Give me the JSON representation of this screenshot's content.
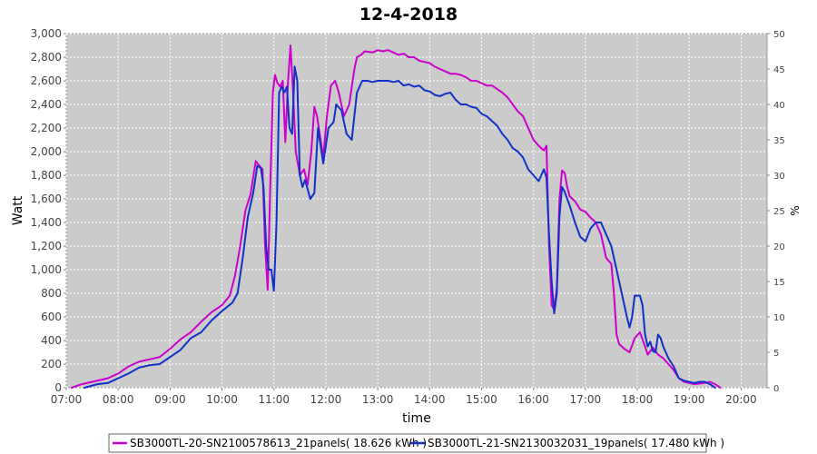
{
  "chart_data": {
    "type": "line",
    "title": "12-4-2018",
    "xlabel": "time",
    "ylabel": "Watt",
    "y2label": "%",
    "xlim": [
      7.0,
      20.5
    ],
    "ylim": [
      0,
      3000
    ],
    "y2lim": [
      0,
      50
    ],
    "x_ticks": [
      {
        "v": 7,
        "label": "07:00"
      },
      {
        "v": 8,
        "label": "08:00"
      },
      {
        "v": 9,
        "label": "09:00"
      },
      {
        "v": 10,
        "label": "10:00"
      },
      {
        "v": 11,
        "label": "11:00"
      },
      {
        "v": 12,
        "label": "12:00"
      },
      {
        "v": 13,
        "label": "13:00"
      },
      {
        "v": 14,
        "label": "14:00"
      },
      {
        "v": 15,
        "label": "15:00"
      },
      {
        "v": 16,
        "label": "16:00"
      },
      {
        "v": 17,
        "label": "17:00"
      },
      {
        "v": 18,
        "label": "18:00"
      },
      {
        "v": 19,
        "label": "19:00"
      },
      {
        "v": 20,
        "label": "20:00"
      }
    ],
    "y_ticks": [
      {
        "v": 0,
        "label": "0"
      },
      {
        "v": 200,
        "label": "200"
      },
      {
        "v": 400,
        "label": "400"
      },
      {
        "v": 600,
        "label": "600"
      },
      {
        "v": 800,
        "label": "800"
      },
      {
        "v": 1000,
        "label": "1,000"
      },
      {
        "v": 1200,
        "label": "1,200"
      },
      {
        "v": 1400,
        "label": "1,400"
      },
      {
        "v": 1600,
        "label": "1,600"
      },
      {
        "v": 1800,
        "label": "1,800"
      },
      {
        "v": 2000,
        "label": "2,000"
      },
      {
        "v": 2200,
        "label": "2,200"
      },
      {
        "v": 2400,
        "label": "2,400"
      },
      {
        "v": 2600,
        "label": "2,600"
      },
      {
        "v": 2800,
        "label": "2,800"
      },
      {
        "v": 3000,
        "label": "3,000"
      }
    ],
    "y2_ticks": [
      {
        "v": 0,
        "label": "0"
      },
      {
        "v": 5,
        "label": "5"
      },
      {
        "v": 10,
        "label": "10"
      },
      {
        "v": 15,
        "label": "15"
      },
      {
        "v": 20,
        "label": "20"
      },
      {
        "v": 25,
        "label": "25"
      },
      {
        "v": 30,
        "label": "30"
      },
      {
        "v": 35,
        "label": "35"
      },
      {
        "v": 40,
        "label": "40"
      },
      {
        "v": 45,
        "label": "45"
      },
      {
        "v": 50,
        "label": "50"
      }
    ],
    "grid": true,
    "legend_position": "bottom",
    "series": [
      {
        "name": "SB3000TL-20-SN2100578613_21panels( 18.626 kWh )",
        "color": "#cc00cc",
        "points": [
          [
            7.1,
            0
          ],
          [
            7.3,
            30
          ],
          [
            7.5,
            50
          ],
          [
            7.8,
            80
          ],
          [
            8.0,
            120
          ],
          [
            8.2,
            180
          ],
          [
            8.4,
            220
          ],
          [
            8.6,
            240
          ],
          [
            8.8,
            260
          ],
          [
            9.0,
            330
          ],
          [
            9.2,
            410
          ],
          [
            9.4,
            470
          ],
          [
            9.6,
            560
          ],
          [
            9.8,
            640
          ],
          [
            10.0,
            700
          ],
          [
            10.15,
            780
          ],
          [
            10.25,
            950
          ],
          [
            10.35,
            1200
          ],
          [
            10.45,
            1500
          ],
          [
            10.55,
            1640
          ],
          [
            10.65,
            1920
          ],
          [
            10.72,
            1880
          ],
          [
            10.78,
            1850
          ],
          [
            10.83,
            1200
          ],
          [
            10.88,
            830
          ],
          [
            10.93,
            1700
          ],
          [
            10.98,
            2500
          ],
          [
            11.02,
            2650
          ],
          [
            11.07,
            2580
          ],
          [
            11.12,
            2550
          ],
          [
            11.17,
            2600
          ],
          [
            11.22,
            2080
          ],
          [
            11.27,
            2580
          ],
          [
            11.32,
            2900
          ],
          [
            11.37,
            2500
          ],
          [
            11.42,
            2000
          ],
          [
            11.5,
            1800
          ],
          [
            11.58,
            1850
          ],
          [
            11.65,
            1720
          ],
          [
            11.72,
            2000
          ],
          [
            11.78,
            2380
          ],
          [
            11.83,
            2300
          ],
          [
            11.9,
            2100
          ],
          [
            11.95,
            1950
          ],
          [
            12.02,
            2300
          ],
          [
            12.1,
            2560
          ],
          [
            12.18,
            2600
          ],
          [
            12.25,
            2500
          ],
          [
            12.35,
            2300
          ],
          [
            12.45,
            2400
          ],
          [
            12.55,
            2700
          ],
          [
            12.6,
            2800
          ],
          [
            12.68,
            2820
          ],
          [
            12.75,
            2850
          ],
          [
            12.9,
            2840
          ],
          [
            13.0,
            2860
          ],
          [
            13.1,
            2850
          ],
          [
            13.2,
            2860
          ],
          [
            13.3,
            2840
          ],
          [
            13.4,
            2820
          ],
          [
            13.5,
            2830
          ],
          [
            13.6,
            2800
          ],
          [
            13.7,
            2800
          ],
          [
            13.8,
            2770
          ],
          [
            13.9,
            2760
          ],
          [
            14.0,
            2750
          ],
          [
            14.1,
            2720
          ],
          [
            14.2,
            2700
          ],
          [
            14.3,
            2680
          ],
          [
            14.4,
            2660
          ],
          [
            14.5,
            2660
          ],
          [
            14.6,
            2650
          ],
          [
            14.7,
            2630
          ],
          [
            14.8,
            2600
          ],
          [
            14.9,
            2600
          ],
          [
            15.0,
            2580
          ],
          [
            15.1,
            2560
          ],
          [
            15.2,
            2560
          ],
          [
            15.3,
            2530
          ],
          [
            15.4,
            2500
          ],
          [
            15.5,
            2460
          ],
          [
            15.6,
            2400
          ],
          [
            15.7,
            2340
          ],
          [
            15.8,
            2300
          ],
          [
            15.9,
            2200
          ],
          [
            16.0,
            2100
          ],
          [
            16.1,
            2050
          ],
          [
            16.2,
            2010
          ],
          [
            16.25,
            2050
          ],
          [
            16.3,
            1200
          ],
          [
            16.35,
            700
          ],
          [
            16.4,
            660
          ],
          [
            16.45,
            850
          ],
          [
            16.5,
            1600
          ],
          [
            16.55,
            1840
          ],
          [
            16.6,
            1820
          ],
          [
            16.65,
            1700
          ],
          [
            16.7,
            1620
          ],
          [
            16.8,
            1580
          ],
          [
            16.9,
            1510
          ],
          [
            17.0,
            1490
          ],
          [
            17.1,
            1440
          ],
          [
            17.2,
            1400
          ],
          [
            17.3,
            1300
          ],
          [
            17.4,
            1100
          ],
          [
            17.5,
            1050
          ],
          [
            17.55,
            800
          ],
          [
            17.6,
            450
          ],
          [
            17.65,
            370
          ],
          [
            17.75,
            330
          ],
          [
            17.85,
            300
          ],
          [
            17.95,
            420
          ],
          [
            18.05,
            470
          ],
          [
            18.15,
            350
          ],
          [
            18.2,
            280
          ],
          [
            18.3,
            340
          ],
          [
            18.4,
            280
          ],
          [
            18.5,
            250
          ],
          [
            18.6,
            200
          ],
          [
            18.7,
            150
          ],
          [
            18.8,
            80
          ],
          [
            18.9,
            50
          ],
          [
            19.0,
            40
          ],
          [
            19.1,
            30
          ],
          [
            19.3,
            40
          ],
          [
            19.4,
            50
          ],
          [
            19.5,
            30
          ],
          [
            19.6,
            0
          ]
        ]
      },
      {
        "name": "SB3000TL-21-SN2130032031_19panels( 17.480 kWh )",
        "color": "#1030c8",
        "points": [
          [
            7.35,
            0
          ],
          [
            7.6,
            30
          ],
          [
            7.8,
            40
          ],
          [
            8.0,
            80
          ],
          [
            8.2,
            120
          ],
          [
            8.4,
            170
          ],
          [
            8.6,
            190
          ],
          [
            8.8,
            200
          ],
          [
            9.0,
            260
          ],
          [
            9.2,
            320
          ],
          [
            9.4,
            420
          ],
          [
            9.6,
            470
          ],
          [
            9.8,
            570
          ],
          [
            10.0,
            650
          ],
          [
            10.2,
            720
          ],
          [
            10.3,
            800
          ],
          [
            10.4,
            1100
          ],
          [
            10.5,
            1450
          ],
          [
            10.6,
            1650
          ],
          [
            10.68,
            1880
          ],
          [
            10.75,
            1860
          ],
          [
            10.8,
            1700
          ],
          [
            10.85,
            1200
          ],
          [
            10.9,
            1000
          ],
          [
            10.95,
            1000
          ],
          [
            11.0,
            820
          ],
          [
            11.05,
            1400
          ],
          [
            11.1,
            2500
          ],
          [
            11.15,
            2550
          ],
          [
            11.2,
            2500
          ],
          [
            11.25,
            2550
          ],
          [
            11.3,
            2200
          ],
          [
            11.35,
            2150
          ],
          [
            11.4,
            2720
          ],
          [
            11.45,
            2600
          ],
          [
            11.5,
            1800
          ],
          [
            11.55,
            1700
          ],
          [
            11.6,
            1760
          ],
          [
            11.7,
            1600
          ],
          [
            11.78,
            1650
          ],
          [
            11.85,
            2200
          ],
          [
            11.9,
            2050
          ],
          [
            11.95,
            1900
          ],
          [
            12.05,
            2200
          ],
          [
            12.15,
            2250
          ],
          [
            12.2,
            2400
          ],
          [
            12.3,
            2350
          ],
          [
            12.4,
            2150
          ],
          [
            12.5,
            2100
          ],
          [
            12.6,
            2500
          ],
          [
            12.7,
            2600
          ],
          [
            12.8,
            2600
          ],
          [
            12.9,
            2590
          ],
          [
            13.0,
            2600
          ],
          [
            13.1,
            2600
          ],
          [
            13.2,
            2600
          ],
          [
            13.3,
            2590
          ],
          [
            13.4,
            2600
          ],
          [
            13.5,
            2560
          ],
          [
            13.6,
            2570
          ],
          [
            13.7,
            2550
          ],
          [
            13.8,
            2560
          ],
          [
            13.9,
            2520
          ],
          [
            14.0,
            2510
          ],
          [
            14.1,
            2480
          ],
          [
            14.2,
            2470
          ],
          [
            14.3,
            2490
          ],
          [
            14.4,
            2500
          ],
          [
            14.5,
            2440
          ],
          [
            14.6,
            2400
          ],
          [
            14.7,
            2400
          ],
          [
            14.8,
            2380
          ],
          [
            14.9,
            2370
          ],
          [
            15.0,
            2320
          ],
          [
            15.1,
            2300
          ],
          [
            15.2,
            2260
          ],
          [
            15.3,
            2220
          ],
          [
            15.4,
            2150
          ],
          [
            15.5,
            2100
          ],
          [
            15.6,
            2030
          ],
          [
            15.7,
            2000
          ],
          [
            15.8,
            1950
          ],
          [
            15.9,
            1850
          ],
          [
            16.0,
            1800
          ],
          [
            16.1,
            1750
          ],
          [
            16.2,
            1850
          ],
          [
            16.25,
            1780
          ],
          [
            16.3,
            1300
          ],
          [
            16.35,
            900
          ],
          [
            16.4,
            630
          ],
          [
            16.45,
            800
          ],
          [
            16.5,
            1450
          ],
          [
            16.55,
            1700
          ],
          [
            16.6,
            1660
          ],
          [
            16.7,
            1540
          ],
          [
            16.8,
            1400
          ],
          [
            16.9,
            1280
          ],
          [
            17.0,
            1240
          ],
          [
            17.1,
            1350
          ],
          [
            17.2,
            1400
          ],
          [
            17.3,
            1400
          ],
          [
            17.4,
            1300
          ],
          [
            17.5,
            1200
          ],
          [
            17.6,
            1000
          ],
          [
            17.7,
            800
          ],
          [
            17.8,
            600
          ],
          [
            17.85,
            510
          ],
          [
            17.9,
            600
          ],
          [
            17.95,
            780
          ],
          [
            18.05,
            780
          ],
          [
            18.1,
            700
          ],
          [
            18.15,
            450
          ],
          [
            18.2,
            350
          ],
          [
            18.25,
            390
          ],
          [
            18.3,
            310
          ],
          [
            18.35,
            300
          ],
          [
            18.4,
            450
          ],
          [
            18.45,
            420
          ],
          [
            18.5,
            350
          ],
          [
            18.6,
            250
          ],
          [
            18.7,
            180
          ],
          [
            18.8,
            80
          ],
          [
            18.9,
            60
          ],
          [
            19.0,
            50
          ],
          [
            19.1,
            40
          ],
          [
            19.2,
            50
          ],
          [
            19.3,
            50
          ],
          [
            19.4,
            30
          ],
          [
            19.5,
            0
          ]
        ]
      }
    ]
  }
}
